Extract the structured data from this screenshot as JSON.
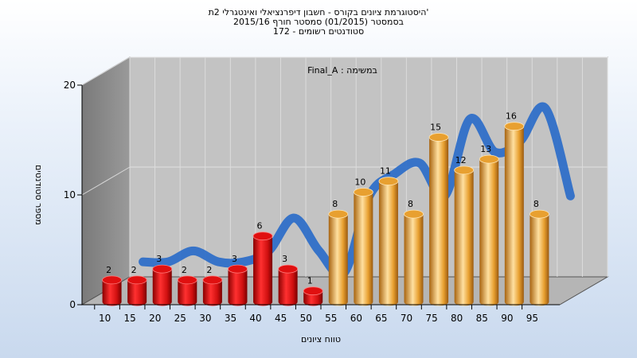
{
  "chart_data": {
    "type": "bar",
    "title_lines": [
      "היסטוגרמת ציונים בקורס - חשבון דיפרנציאלי ואינטגרלי 2ת'",
      "בסמסטר (01/2015) סמסטר חורף 2015/16",
      "172 - סטודנטים רשומים"
    ],
    "annotation": "Final_A : במשימה",
    "xlabel": "טווח ציונים",
    "ylabel": "מספר סטודנטים",
    "ylim": [
      0,
      20
    ],
    "y_ticks": [
      "0",
      "10",
      "20"
    ],
    "categories": [
      "10",
      "15",
      "20",
      "25",
      "30",
      "35",
      "40",
      "45",
      "50",
      "55",
      "60",
      "65",
      "70",
      "75",
      "80",
      "85",
      "90",
      "95"
    ],
    "values": [
      2,
      2,
      3,
      2,
      2,
      3,
      6,
      3,
      1,
      8,
      10,
      11,
      8,
      15,
      12,
      13,
      16,
      8
    ],
    "data_labels": [
      "2",
      "2",
      "3",
      "2",
      "2",
      "3",
      "6",
      "3",
      "1",
      "8",
      "10",
      "11",
      "8",
      "15",
      "12",
      "13",
      "16",
      "8"
    ],
    "bar_groups": [
      {
        "range": [
          0,
          8
        ],
        "color": "#e01010"
      },
      {
        "range": [
          9,
          17
        ],
        "color": "#e8a030"
      }
    ],
    "trend_color": "#2f6fc8",
    "grid": true,
    "style": "3d-cylinder"
  }
}
